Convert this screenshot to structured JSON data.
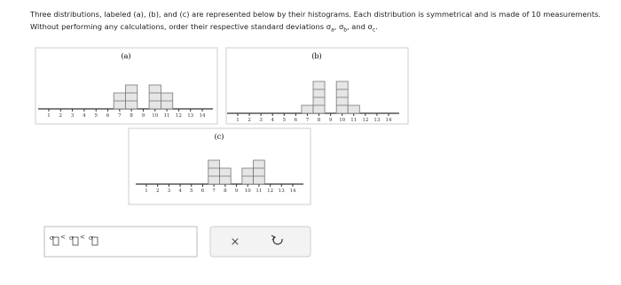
{
  "question": {
    "line1": "Three distributions, labeled (a), (b), and (c) are represented below by their histograms. Each distribution is symmetrical and is made of 10 measurements.",
    "line2": [
      "Without performing any calculations, order their respective standard deviations ",
      "σ",
      "a",
      ", ",
      "σ",
      "b",
      ", and ",
      "σ",
      "c",
      "."
    ]
  },
  "histograms": [
    {
      "label": "(a)",
      "ticks": [
        1,
        2,
        3,
        4,
        5,
        6,
        7,
        8,
        9,
        10,
        11,
        12,
        13,
        14
      ],
      "counts": [
        0,
        0,
        0,
        0,
        0,
        0,
        2,
        3,
        0,
        3,
        2,
        0,
        0,
        0
      ]
    },
    {
      "label": "(b)",
      "ticks": [
        1,
        2,
        3,
        4,
        5,
        6,
        7,
        8,
        9,
        10,
        11,
        12,
        13,
        14
      ],
      "counts": [
        0,
        0,
        0,
        0,
        0,
        0,
        1,
        4,
        0,
        4,
        1,
        0,
        0,
        0
      ]
    },
    {
      "label": "(c)",
      "ticks": [
        1,
        2,
        3,
        4,
        5,
        6,
        7,
        8,
        9,
        10,
        11,
        12,
        13,
        14
      ],
      "counts": [
        0,
        0,
        0,
        0,
        0,
        0,
        3,
        2,
        0,
        2,
        3,
        0,
        0,
        0
      ]
    }
  ],
  "answer": {
    "slots": [
      "σ",
      "σ",
      "σ"
    ],
    "separators": [
      "<",
      "<"
    ]
  },
  "buttons": {
    "clear": "×"
  }
}
